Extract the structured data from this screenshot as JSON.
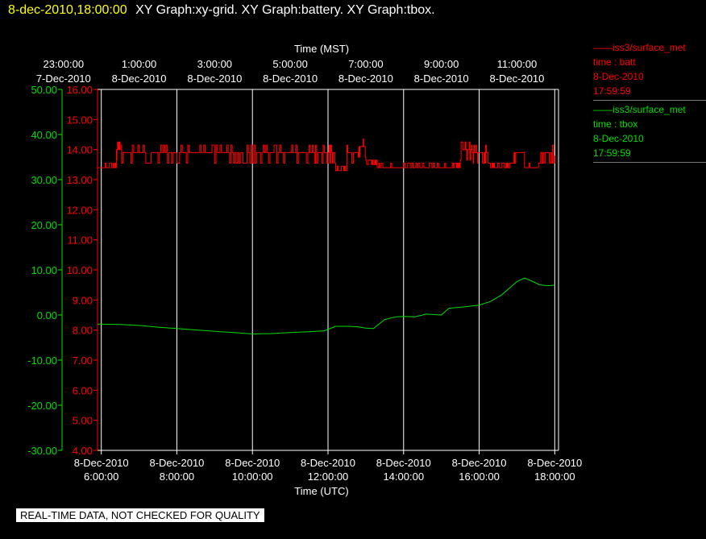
{
  "header": {
    "timestamp": "8-dec-2010,18:00:00",
    "titles": "XY Graph:xy-grid.  XY Graph:battery.  XY Graph:tbox."
  },
  "legend": [
    {
      "source": "iss3/surface_met",
      "var": "time : batt",
      "date": "8-Dec-2010",
      "time": "17:59:59",
      "color": "#ff0000"
    },
    {
      "source": "iss3/surface_met",
      "var": "time : tbox",
      "date": "8-Dec-2010",
      "time": "17:59:59",
      "color": "#00dd00"
    }
  ],
  "quality_banner": "REAL-TIME DATA, NOT CHECKED FOR QUALITY",
  "chart_data": {
    "type": "line",
    "top_axis": {
      "title": "Time (MST)",
      "ticks": [
        {
          "x": 5,
          "time": "23:00:00",
          "date": "7-Dec-2010"
        },
        {
          "x": 7,
          "time": "1:00:00",
          "date": "8-Dec-2010"
        },
        {
          "x": 9,
          "time": "3:00:00",
          "date": "8-Dec-2010"
        },
        {
          "x": 11,
          "time": "5:00:00",
          "date": "8-Dec-2010"
        },
        {
          "x": 13,
          "time": "7:00:00",
          "date": "8-Dec-2010"
        },
        {
          "x": 15,
          "time": "9:00:00",
          "date": "8-Dec-2010"
        },
        {
          "x": 17,
          "time": "11:00:00",
          "date": "8-Dec-2010"
        }
      ]
    },
    "bottom_axis": {
      "title": "Time (UTC)",
      "ticks": [
        {
          "x": 6,
          "date": "8-Dec-2010",
          "time": "6:00:00"
        },
        {
          "x": 8,
          "date": "8-Dec-2010",
          "time": "8:00:00"
        },
        {
          "x": 10,
          "date": "8-Dec-2010",
          "time": "10:00:00"
        },
        {
          "x": 12,
          "date": "8-Dec-2010",
          "time": "12:00:00"
        },
        {
          "x": 14,
          "date": "8-Dec-2010",
          "time": "14:00:00"
        },
        {
          "x": 16,
          "date": "8-Dec-2010",
          "time": "16:00:00"
        },
        {
          "x": 18,
          "date": "8-Dec-2010",
          "time": "18:00:00"
        }
      ]
    },
    "xlim": [
      5.9,
      18.1
    ],
    "grid": "vertical",
    "y_left_outer": {
      "color": "#00dd00",
      "ylim": [
        -30,
        50
      ],
      "ticks": [
        "50.00",
        "40.00",
        "30.00",
        "20.00",
        "10.00",
        "0.00",
        "-10.00",
        "-20.00",
        "-30.00"
      ]
    },
    "y_left_inner": {
      "color": "#ff0000",
      "ylim": [
        4,
        16
      ],
      "ticks": [
        "16.00",
        "15.00",
        "14.00",
        "13.00",
        "12.00",
        "11.00",
        "10.00",
        "9.00",
        "8.00",
        "7.00",
        "6.00",
        "5.00",
        "4.00"
      ]
    },
    "series": [
      {
        "axis": "y_left_inner",
        "color": "#ff0000",
        "x": [
          5.9,
          6.3,
          6.4,
          6.5,
          7.0,
          7.5,
          8.0,
          8.5,
          9.0,
          9.5,
          10.0,
          10.5,
          11.0,
          11.5,
          11.9,
          12.2,
          12.5,
          12.8,
          13.0,
          13.3,
          13.6,
          14.0,
          14.5,
          15.0,
          15.4,
          15.5,
          15.8,
          16.0,
          16.3,
          16.6,
          16.9,
          17.2,
          17.6,
          18.0
        ],
        "y": [
          13.4,
          13.4,
          14.0,
          13.9,
          13.9,
          13.9,
          13.9,
          13.9,
          13.9,
          13.9,
          13.9,
          13.9,
          13.9,
          13.9,
          13.9,
          13.3,
          13.9,
          14.1,
          13.5,
          13.4,
          13.4,
          13.4,
          13.4,
          13.4,
          13.4,
          14.0,
          13.9,
          13.9,
          13.4,
          13.4,
          13.9,
          13.4,
          13.9,
          13.8
        ]
      },
      {
        "axis": "y_left_outer",
        "color": "#00dd00",
        "x": [
          5.9,
          6.5,
          7.0,
          7.5,
          8.0,
          8.5,
          9.0,
          9.5,
          10.0,
          10.5,
          11.0,
          11.5,
          11.9,
          12.2,
          12.5,
          12.8,
          13.0,
          13.2,
          13.5,
          13.8,
          14.0,
          14.3,
          14.6,
          15.0,
          15.2,
          15.6,
          16.0,
          16.3,
          16.6,
          17.0,
          17.2,
          17.4,
          17.6,
          17.8,
          18.0
        ],
        "y": [
          -2.0,
          -2.1,
          -2.3,
          -2.7,
          -3.0,
          -3.3,
          -3.6,
          -3.9,
          -4.2,
          -4.1,
          -3.9,
          -3.7,
          -3.5,
          -2.5,
          -2.5,
          -2.6,
          -2.9,
          -3.0,
          -1.0,
          -0.4,
          -0.3,
          -0.4,
          0.2,
          0.0,
          1.5,
          1.8,
          2.2,
          3.0,
          4.5,
          7.4,
          8.2,
          7.5,
          6.7,
          6.5,
          6.6
        ]
      }
    ]
  }
}
